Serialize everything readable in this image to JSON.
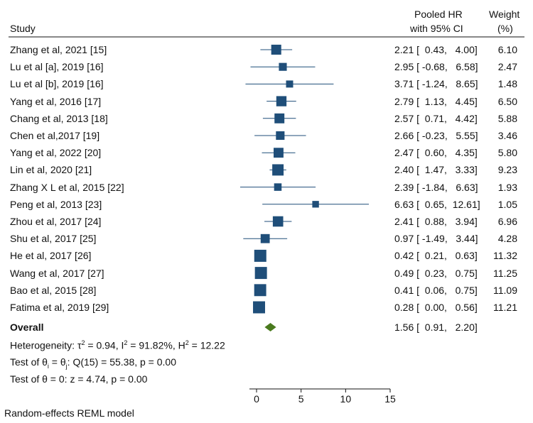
{
  "chart_data": {
    "type": "forest",
    "header": {
      "study": "Study",
      "effect_line1": "Pooled HR",
      "effect_line2": "with 95% CI",
      "weight_line1": "Weight",
      "weight_line2": "(%)"
    },
    "studies": [
      {
        "label": "Zhang et al, 2021 [15]",
        "est": 2.21,
        "lo": 0.43,
        "hi": 4.0,
        "ci_text": "2.21 [  0.43,   4.00]",
        "weight": "6.10"
      },
      {
        "label": "Lu et al [a], 2019 [16]",
        "est": 2.95,
        "lo": -0.68,
        "hi": 6.58,
        "ci_text": "2.95 [ -0.68,   6.58]",
        "weight": "2.47"
      },
      {
        "label": "Lu et al [b], 2019 [16]",
        "est": 3.71,
        "lo": -1.24,
        "hi": 8.65,
        "ci_text": "3.71 [ -1.24,   8.65]",
        "weight": "1.48"
      },
      {
        "label": "Yang et al, 2016 [17]",
        "est": 2.79,
        "lo": 1.13,
        "hi": 4.45,
        "ci_text": "2.79 [  1.13,   4.45]",
        "weight": "6.50"
      },
      {
        "label": "Chang et al, 2013 [18]",
        "est": 2.57,
        "lo": 0.71,
        "hi": 4.42,
        "ci_text": "2.57 [  0.71,   4.42]",
        "weight": "5.88"
      },
      {
        "label": "Chen et al,2017 [19]",
        "est": 2.66,
        "lo": -0.23,
        "hi": 5.55,
        "ci_text": "2.66 [ -0.23,   5.55]",
        "weight": "3.46"
      },
      {
        "label": "Yang et al, 2022 [20]",
        "est": 2.47,
        "lo": 0.6,
        "hi": 4.35,
        "ci_text": "2.47 [  0.60,   4.35]",
        "weight": "5.80"
      },
      {
        "label": "Lin et al, 2020 [21]",
        "est": 2.4,
        "lo": 1.47,
        "hi": 3.33,
        "ci_text": "2.40 [  1.47,   3.33]",
        "weight": "9.23"
      },
      {
        "label": "Zhang X L et al, 2015 [22]",
        "est": 2.39,
        "lo": -1.84,
        "hi": 6.63,
        "ci_text": "2.39 [ -1.84,   6.63]",
        "weight": "1.93"
      },
      {
        "label": "Peng et al, 2013 [23]",
        "est": 6.63,
        "lo": 0.65,
        "hi": 12.61,
        "ci_text": "6.63 [  0.65,  12.61]",
        "weight": "1.05"
      },
      {
        "label": "Zhou et al, 2017 [24]",
        "est": 2.41,
        "lo": 0.88,
        "hi": 3.94,
        "ci_text": "2.41 [  0.88,   3.94]",
        "weight": "6.96"
      },
      {
        "label": "Shu et al, 2017 [25]",
        "est": 0.97,
        "lo": -1.49,
        "hi": 3.44,
        "ci_text": "0.97 [ -1.49,   3.44]",
        "weight": "4.28"
      },
      {
        "label": "He et al, 2017 [26]",
        "est": 0.42,
        "lo": 0.21,
        "hi": 0.63,
        "ci_text": "0.42 [  0.21,   0.63]",
        "weight": "11.32"
      },
      {
        "label": "Wang et al, 2017 [27]",
        "est": 0.49,
        "lo": 0.23,
        "hi": 0.75,
        "ci_text": "0.49 [  0.23,   0.75]",
        "weight": "11.25"
      },
      {
        "label": "Bao et al, 2015 [28]",
        "est": 0.41,
        "lo": 0.06,
        "hi": 0.75,
        "ci_text": "0.41 [  0.06,   0.75]",
        "weight": "11.09"
      },
      {
        "label": "Fatima et al, 2019 [29]",
        "est": 0.28,
        "lo": 0.0,
        "hi": 0.56,
        "ci_text": "0.28 [  0.00,   0.56]",
        "weight": "11.21"
      }
    ],
    "overall": {
      "label": "Overall",
      "est": 1.56,
      "lo": 0.91,
      "hi": 2.2,
      "ci_text": "1.56 [  0.91,   2.20]"
    },
    "stats": {
      "heterogeneity_prefix": "Heterogeneity: τ",
      "tau2_value": " = 0.94, I",
      "i2_value": " = 91.82%, H",
      "h2_value": " = 12.22",
      "sup": "2",
      "test_theta_prefix": "Test of θ",
      "test_theta_mid": " = θ",
      "test_theta_rest": ": Q(15) = 55.38, p = 0.00",
      "sub": "i",
      "sub_j": "j",
      "test_zero": "Test of θ = 0: z = 4.74, p = 0.00"
    },
    "x_axis": {
      "ticks": [
        0,
        5,
        10,
        15
      ],
      "tick_labels": [
        "0",
        "5",
        "10",
        "15"
      ],
      "xlim": [
        -0.8,
        15
      ]
    },
    "footer": "Random-effects REML model",
    "colors": {
      "marker": "#1f4e79",
      "ci_line": "#1f4e79",
      "diamond": "#4a7a1e",
      "text": "#111111"
    }
  }
}
